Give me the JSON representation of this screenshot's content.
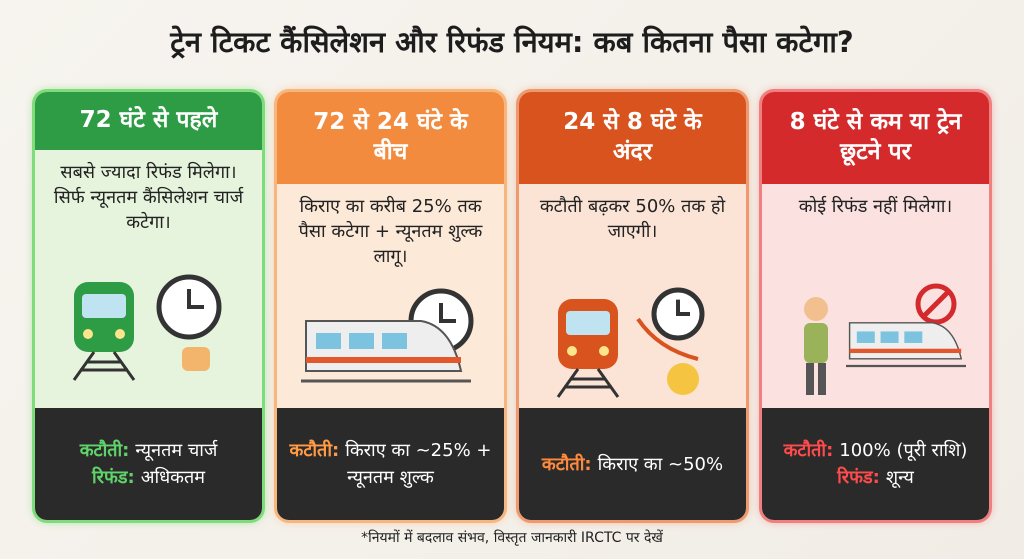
{
  "title": "ट्रेन टिकट कैंसिलेशन और रिफंड नियम: कब कितना पैसा कटेगा?",
  "cards": [
    {
      "header": "72 घंटे से पहले",
      "description": "सबसे ज्यादा रिफंड मिलेगा। सिर्फ न्यूनतम कैंसिलेशन चार्ज कटेगा।",
      "footer": [
        {
          "label": "कटौती:",
          "text": "न्यूनतम चार्ज"
        },
        {
          "label": "रिफंड:",
          "text": "अधिकतम"
        }
      ]
    },
    {
      "header": "72 से 24 घंटे के बीच",
      "description": "किराए का करीब 25% तक पैसा कटेगा + न्यूनतम शुल्क लागू।",
      "footer": [
        {
          "label": "कटौती:",
          "text": "किराए का ~25% + न्यूनतम शुल्क"
        }
      ]
    },
    {
      "header": "24 से 8 घंटे के अंदर",
      "description": "कटौती बढ़कर 50% तक हो जाएगी।",
      "footer": [
        {
          "label": "कटौती:",
          "text": "किराए का ~50%"
        }
      ]
    },
    {
      "header": "8 घंटे से कम या ट्रेन छूटने पर",
      "description": "कोई रिफंड नहीं मिलेगा।",
      "footer": [
        {
          "label": "कटौती:",
          "text": "100% (पूरी राशि)"
        },
        {
          "label": "रिफंड:",
          "text": "शून्य"
        }
      ]
    }
  ],
  "footnote": "*नियमों में बदलाव संभव, विस्तृत जानकारी IRCTC पर देखें"
}
